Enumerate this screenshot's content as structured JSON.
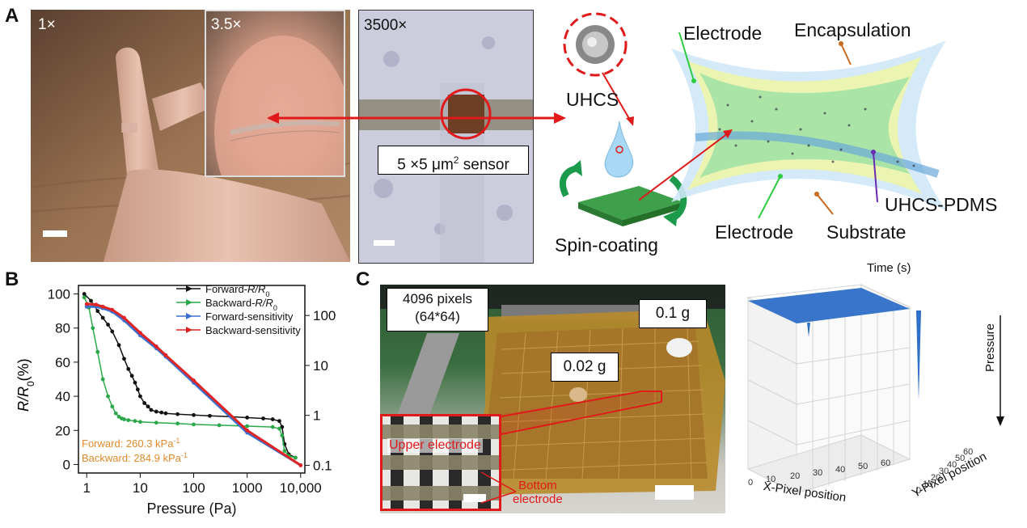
{
  "panel_a": {
    "letter": "A",
    "photo1_zoom": "1×",
    "photo2_zoom": "3.5×",
    "photo3_zoom": "3500×",
    "sensor_label_prefix": "5 ×5 μm",
    "sensor_label_sup": "2",
    "sensor_label_suffix": " sensor",
    "uhcs": "UHCS",
    "spin_coating": "Spin-coating",
    "electrode_top": "Electrode",
    "encapsulation": "Encapsulation",
    "electrode_bottom": "Electrode",
    "substrate": "Substrate",
    "uhcs_pdms": "UHCS-PDMS"
  },
  "panel_b": {
    "letter": "B",
    "annot_forward": "Forward: 260.3 kPa",
    "annot_backward": "Backward: 284.9 kPa",
    "annot_unit_sup": "-1"
  },
  "panel_c": {
    "letter": "C",
    "pixels_line1": "4096 pixels",
    "pixels_line2": "(64*64)",
    "weight_heavy": "0.1 g",
    "weight_light": "0.02 g",
    "upper_electrode": "Upper electrode",
    "bottom_electrode_1": "Bottom",
    "bottom_electrode_2": "electrode",
    "plot3d": {
      "time_label": "Time (s)",
      "pressure_label": "Pressure",
      "x_label": "X-Pixel position",
      "y_label": "Y-Pixel position",
      "x_ticks": [
        "0",
        "10",
        "20",
        "30",
        "40",
        "50",
        "60"
      ],
      "y_ticks": [
        "0",
        "10",
        "20",
        "30",
        "40",
        "50",
        "60"
      ]
    }
  },
  "colors": {
    "forward_r": "#111111",
    "backward_r": "#2aa84a",
    "forward_sens": "#3a6fd0",
    "backward_sens": "#e02424",
    "annotation": "#e08a2a",
    "accent_red": "#e01a1a"
  },
  "chart_data": {
    "type": "line",
    "xlabel": "Pressure (Pa)",
    "ylabel": "R/R",
    "ylabel_sub": "0",
    "ylabel_unit": "(%)",
    "xscale": "log",
    "xlim": [
      0.7,
      12000
    ],
    "ylim": [
      -5,
      105
    ],
    "y2scale": "log",
    "y2lim": [
      0.07,
      400
    ],
    "xticks": [
      {
        "v": 1,
        "t": "1"
      },
      {
        "v": 10,
        "t": "10"
      },
      {
        "v": 100,
        "t": "100"
      },
      {
        "v": 1000,
        "t": "1000"
      },
      {
        "v": 10000,
        "t": "10,000"
      }
    ],
    "yticks": [
      0,
      20,
      40,
      60,
      80,
      100
    ],
    "y2ticks": [
      {
        "v": 0.1,
        "t": "0.1"
      },
      {
        "v": 1,
        "t": "1"
      },
      {
        "v": 10,
        "t": "10"
      },
      {
        "v": 100,
        "t": "100"
      }
    ],
    "legend_position": "top-right",
    "series": [
      {
        "name": "Forward-R/R0",
        "legend_main": "Forward-",
        "legend_italic": "R/R",
        "legend_sub": "0",
        "axis": "left",
        "color": "#111111",
        "x": [
          0.9,
          1.2,
          1.6,
          2,
          2.5,
          3,
          4,
          5,
          6,
          7,
          8,
          9,
          10,
          12,
          14,
          16,
          20,
          25,
          30,
          50,
          100,
          200,
          500,
          1000,
          2000,
          3000,
          4000,
          4500,
          5000,
          6000,
          8000
        ],
        "y": [
          100,
          96,
          90,
          86,
          82,
          78,
          70,
          62,
          56,
          52,
          48,
          44,
          40,
          36,
          34,
          32,
          31,
          30.5,
          30,
          29.5,
          29,
          28.5,
          28,
          27.5,
          27,
          26.5,
          25.5,
          22,
          12,
          6,
          4
        ]
      },
      {
        "name": "Backward-R/R0",
        "legend_main": "Backward-",
        "legend_italic": "R/R",
        "legend_sub": "0",
        "axis": "left",
        "color": "#2aa84a",
        "x": [
          0.9,
          1.1,
          1.3,
          1.6,
          2,
          2.5,
          3,
          3.5,
          4,
          4.5,
          5,
          6,
          8,
          10,
          20,
          50,
          100,
          300,
          1000,
          3000,
          4000,
          4500,
          5000,
          6000,
          8000
        ],
        "y": [
          98,
          92,
          80,
          66,
          50,
          40,
          34,
          30,
          28,
          27,
          26.5,
          26,
          25.5,
          25,
          24.5,
          24,
          23.5,
          23,
          22.5,
          22,
          21,
          17,
          8,
          5,
          4
        ]
      },
      {
        "name": "Forward-sensitivity",
        "legend_main": "Forward-sensitivity",
        "axis": "right",
        "color": "#3a6fd0",
        "x": [
          1,
          1.5,
          2,
          3,
          5,
          10,
          20,
          30,
          100,
          1000,
          10000
        ],
        "y": [
          150,
          150,
          140,
          120,
          80,
          40,
          22,
          15,
          4.5,
          0.45,
          0.1
        ]
      },
      {
        "name": "Backward-sensitivity",
        "legend_main": "Backward-sensitivity",
        "axis": "right",
        "color": "#e02424",
        "x": [
          1,
          1.5,
          2,
          3,
          5,
          10,
          20,
          30,
          100,
          1000,
          10000
        ],
        "y": [
          170,
          165,
          150,
          130,
          90,
          45,
          24,
          16,
          5,
          0.5,
          0.1
        ]
      }
    ]
  }
}
